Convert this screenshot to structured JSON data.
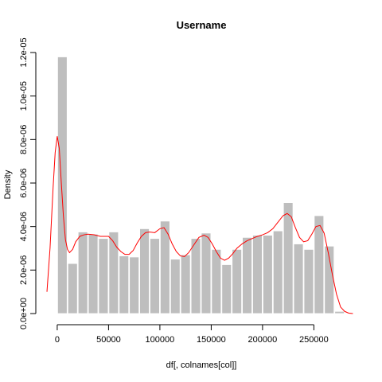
{
  "chart_data": {
    "type": "bar",
    "title": "Username",
    "xlabel": "df[, colnames[col]]",
    "ylabel": "Density",
    "xlim": [
      -10000,
      290000
    ],
    "ylim": [
      0,
      1.2e-05
    ],
    "x_ticks": [
      0,
      50000,
      100000,
      150000,
      200000,
      250000
    ],
    "x_tick_labels": [
      "0",
      "50000",
      "100000",
      "150000",
      "200000",
      "250000"
    ],
    "y_ticks": [
      0,
      2e-06,
      4e-06,
      6e-06,
      8e-06,
      1e-05,
      1.2e-05
    ],
    "y_tick_labels": [
      "0.0e+00",
      "2.0e-06",
      "4.0e-06",
      "6.0e-06",
      "8.0e-06",
      "1.0e-05",
      "1.2e-05"
    ],
    "grid": false,
    "bin_width": 10000,
    "bin_starts": [
      -10000,
      0,
      10000,
      20000,
      30000,
      40000,
      50000,
      60000,
      70000,
      80000,
      90000,
      100000,
      110000,
      120000,
      130000,
      140000,
      150000,
      160000,
      170000,
      180000,
      190000,
      200000,
      210000,
      220000,
      230000,
      240000,
      250000,
      260000,
      270000,
      280000
    ],
    "histogram_density": [
      0,
      1.18e-05,
      2.3e-06,
      3.75e-06,
      3.65e-06,
      3.45e-06,
      3.75e-06,
      2.65e-06,
      2.6e-06,
      3.9e-06,
      3.45e-06,
      4.25e-06,
      2.5e-06,
      2.7e-06,
      3.45e-06,
      3.7e-06,
      2.95e-06,
      2.25e-06,
      2.95e-06,
      3.5e-06,
      3.6e-06,
      3.6e-06,
      3.8e-06,
      5.1e-06,
      3.2e-06,
      2.95e-06,
      4.5e-06,
      3.1e-06,
      1e-07,
      0
    ],
    "bar_color": "#bebebe",
    "density_curve": {
      "color": "#ff0000",
      "x": [
        -10000,
        -7000,
        -4000,
        -2000,
        0,
        2000,
        4000,
        6000,
        8000,
        10000,
        12000,
        15000,
        18000,
        22000,
        26000,
        30000,
        36000,
        42000,
        46000,
        50000,
        54000,
        58000,
        62000,
        66000,
        70000,
        74000,
        78000,
        82000,
        86000,
        90000,
        95000,
        100000,
        104000,
        108000,
        112000,
        116000,
        120000,
        124000,
        128000,
        133000,
        138000,
        143000,
        147000,
        151000,
        155000,
        159000,
        163000,
        167000,
        171000,
        175000,
        180000,
        185000,
        190000,
        195000,
        200000,
        205000,
        210000,
        215000,
        220000,
        224000,
        228000,
        232000,
        236000,
        240000,
        244000,
        248000,
        252000,
        256000,
        260000,
        264000,
        268000,
        272000,
        276000,
        280000,
        284000,
        288000
      ],
      "y": [
        1e-06,
        3e-06,
        5.8e-06,
        7.4e-06,
        8.15e-06,
        7.6e-06,
        6e-06,
        4.5e-06,
        3.4e-06,
        2.95e-06,
        2.8e-06,
        2.95e-06,
        3.3e-06,
        3.55e-06,
        3.62e-06,
        3.65e-06,
        3.62e-06,
        3.55e-06,
        3.55e-06,
        3.55e-06,
        3.35e-06,
        3.05e-06,
        2.85e-06,
        2.72e-06,
        2.72e-06,
        2.9e-06,
        3.25e-06,
        3.55e-06,
        3.72e-06,
        3.75e-06,
        3.72e-06,
        3.9e-06,
        3.95e-06,
        3.65e-06,
        3.2e-06,
        2.85e-06,
        2.65e-06,
        2.62e-06,
        2.8e-06,
        3.15e-06,
        3.5e-06,
        3.6e-06,
        3.5e-06,
        3.2e-06,
        2.85e-06,
        2.55e-06,
        2.45e-06,
        2.55e-06,
        2.75e-06,
        3e-06,
        3.2e-06,
        3.35e-06,
        3.45e-06,
        3.55e-06,
        3.62e-06,
        3.72e-06,
        3.9e-06,
        4.2e-06,
        4.5e-06,
        4.6e-06,
        4.45e-06,
        3.95e-06,
        3.5e-06,
        3.3e-06,
        3.35e-06,
        3.65e-06,
        4e-06,
        4.05e-06,
        3.7e-06,
        2.8e-06,
        1.8e-06,
        9e-07,
        3e-07,
        1e-07,
        2e-08,
        0
      ]
    }
  }
}
